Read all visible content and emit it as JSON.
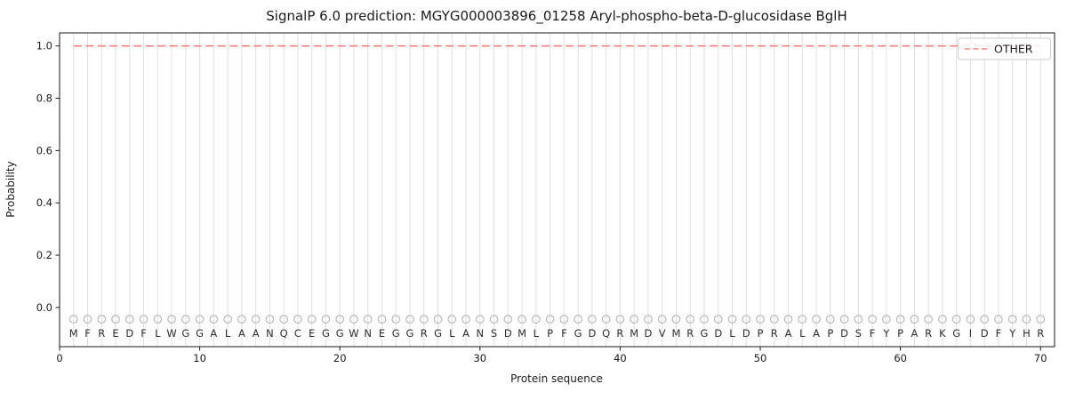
{
  "chart_data": {
    "type": "line",
    "title": "SignalP 6.0 prediction: MGYG000003896_01258 Aryl-phospho-beta-D-glucosidase BglH",
    "xlabel": "Protein sequence",
    "ylabel": "Probability",
    "xlim": [
      0,
      71
    ],
    "ylim": [
      -0.15,
      1.05
    ],
    "xticks": {
      "values": [
        0,
        10,
        20,
        30,
        40,
        50,
        60,
        70
      ],
      "labels": [
        "0",
        "10",
        "20",
        "30",
        "40",
        "50",
        "60",
        "70"
      ]
    },
    "yticks": {
      "values": [
        0.0,
        0.2,
        0.4,
        0.6,
        0.8,
        1.0
      ],
      "labels": [
        "0.0",
        "0.2",
        "0.4",
        "0.6",
        "0.8",
        "1.0"
      ]
    },
    "grid": {
      "vertical_per_residue": true,
      "color": "#e0e0e0"
    },
    "legend": {
      "position": "upper right",
      "entries": [
        {
          "label": "OTHER",
          "color": "#f87f7f",
          "linestyle": "dashed"
        }
      ]
    },
    "sequence": "MFREDFLWGGALAANQCEGGWNEGGRGLANSDMLPFGDQRMDVMRGDLDPRALAPDSFYPARKGIDFYHR",
    "residue_marker": {
      "symbol": "open-circle",
      "color": "#b3b3b3",
      "y": -0.045
    },
    "series": [
      {
        "name": "OTHER",
        "color": "#f87f7f",
        "linestyle": "dashed",
        "x_start": 1,
        "values": [
          1.0,
          1.0,
          1.0,
          1.0,
          1.0,
          1.0,
          1.0,
          1.0,
          1.0,
          1.0,
          1.0,
          1.0,
          1.0,
          1.0,
          1.0,
          1.0,
          1.0,
          1.0,
          1.0,
          1.0,
          1.0,
          1.0,
          1.0,
          1.0,
          1.0,
          1.0,
          1.0,
          1.0,
          1.0,
          1.0,
          1.0,
          1.0,
          1.0,
          1.0,
          1.0,
          1.0,
          1.0,
          1.0,
          1.0,
          1.0,
          1.0,
          1.0,
          1.0,
          1.0,
          1.0,
          1.0,
          1.0,
          1.0,
          1.0,
          1.0,
          1.0,
          1.0,
          1.0,
          1.0,
          1.0,
          1.0,
          1.0,
          1.0,
          1.0,
          1.0,
          1.0,
          1.0,
          1.0,
          1.0,
          1.0,
          1.0,
          1.0,
          1.0,
          1.0,
          1.0
        ]
      }
    ]
  }
}
